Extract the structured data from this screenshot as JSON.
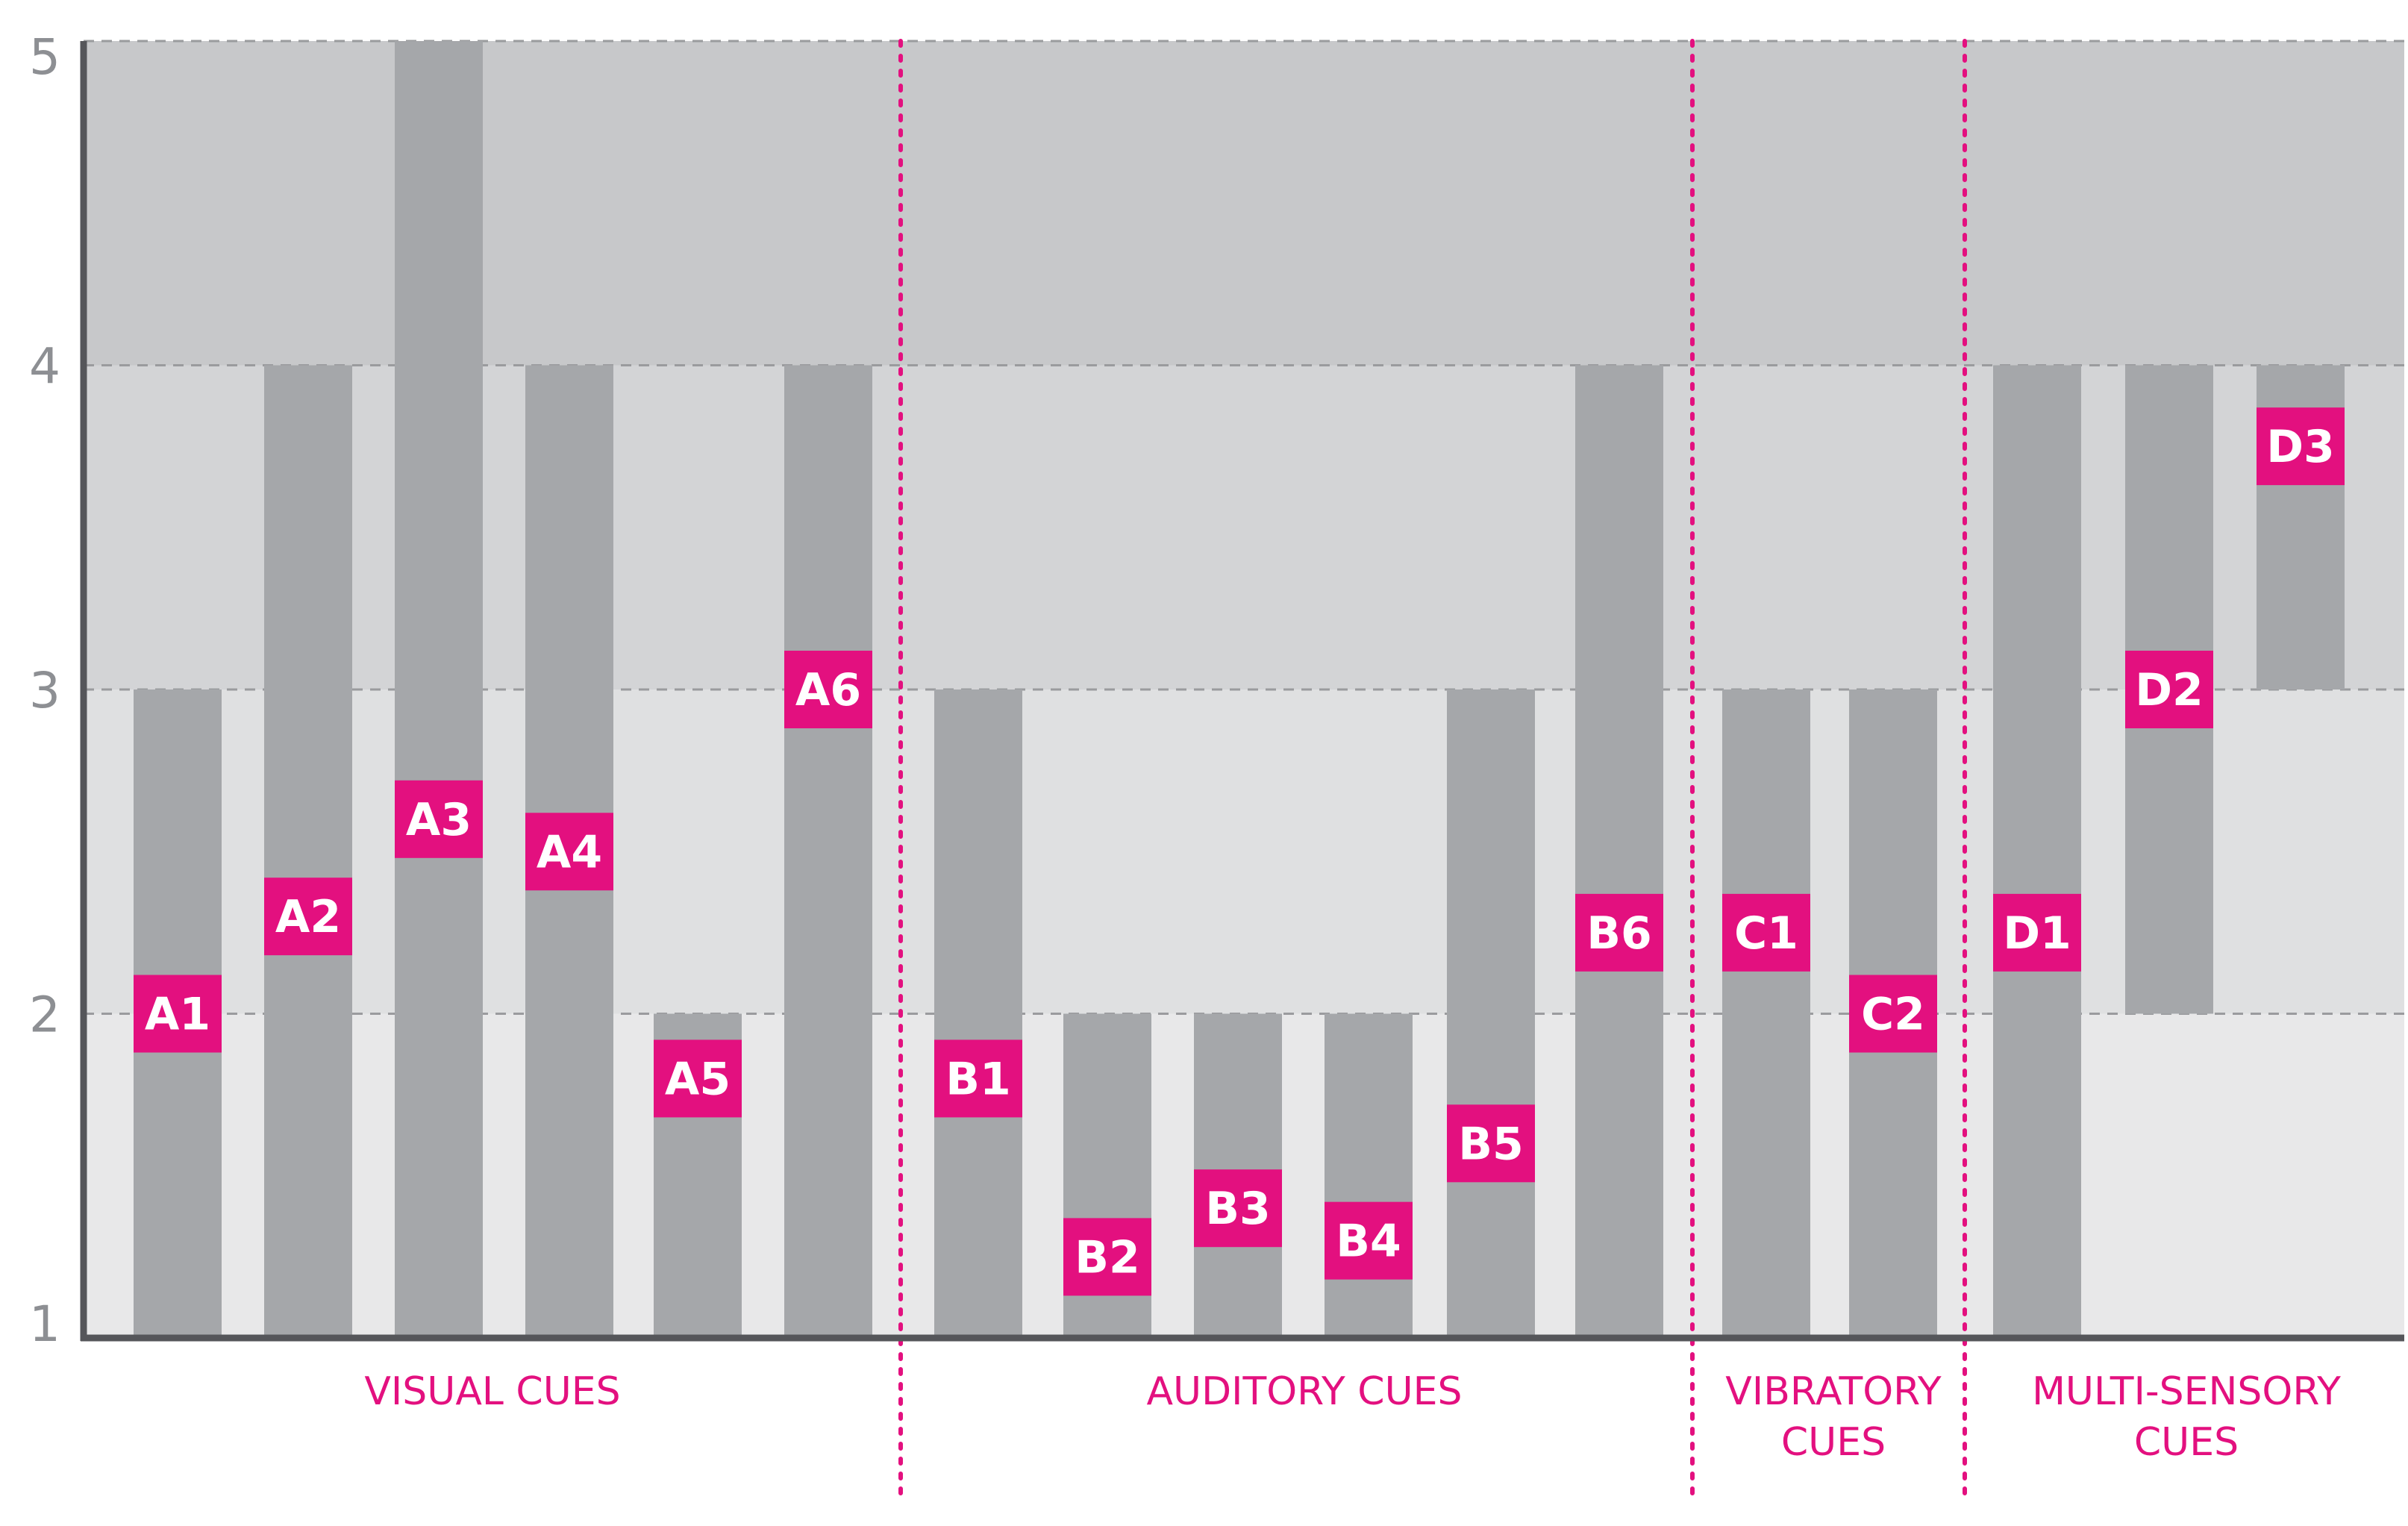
{
  "chart_data": {
    "type": "bar",
    "title": "",
    "xlabel": "",
    "ylabel": "",
    "ylim": [
      1,
      5
    ],
    "yticks": [
      "1",
      "2",
      "3",
      "4",
      "5"
    ],
    "grid": true,
    "groups": [
      {
        "label_lines": [
          "VISUAL CUES"
        ],
        "items": [
          "A1",
          "A2",
          "A3",
          "A4",
          "A5",
          "A6"
        ]
      },
      {
        "label_lines": [
          "AUDITORY CUES"
        ],
        "items": [
          "B1",
          "B2",
          "B3",
          "B4",
          "B5",
          "B6"
        ]
      },
      {
        "label_lines": [
          "VIBRATORY",
          "CUES"
        ],
        "items": [
          "C1",
          "C2"
        ]
      },
      {
        "label_lines": [
          "MULTI-SENSORY",
          "CUES"
        ],
        "items": [
          "D1",
          "D2",
          "D3"
        ]
      }
    ],
    "series": [
      {
        "name": "A1",
        "min": 1,
        "max": 3,
        "mean": 2.0
      },
      {
        "name": "A2",
        "min": 1,
        "max": 4,
        "mean": 2.3
      },
      {
        "name": "A3",
        "min": 1,
        "max": 5,
        "mean": 2.6
      },
      {
        "name": "A4",
        "min": 1,
        "max": 4,
        "mean": 2.5
      },
      {
        "name": "A5",
        "min": 1,
        "max": 2,
        "mean": 1.8
      },
      {
        "name": "A6",
        "min": 1,
        "max": 4,
        "mean": 3.0
      },
      {
        "name": "B1",
        "min": 1,
        "max": 3,
        "mean": 1.8
      },
      {
        "name": "B2",
        "min": 1,
        "max": 2,
        "mean": 1.25
      },
      {
        "name": "B3",
        "min": 1,
        "max": 2,
        "mean": 1.4
      },
      {
        "name": "B4",
        "min": 1,
        "max": 2,
        "mean": 1.3
      },
      {
        "name": "B5",
        "min": 1,
        "max": 3,
        "mean": 1.6
      },
      {
        "name": "B6",
        "min": 1,
        "max": 4,
        "mean": 2.25
      },
      {
        "name": "C1",
        "min": 1,
        "max": 3,
        "mean": 2.25
      },
      {
        "name": "C2",
        "min": 1,
        "max": 3,
        "mean": 2.0
      },
      {
        "name": "D1",
        "min": 1,
        "max": 4,
        "mean": 2.25
      },
      {
        "name": "D2",
        "min": 2,
        "max": 4,
        "mean": 3.0
      },
      {
        "name": "D3",
        "min": 3,
        "max": 4,
        "mean": 3.75
      }
    ]
  },
  "colors": {
    "band_1_2": "#e8e8e9",
    "band_2_3": "#dfe0e1",
    "band_3_4": "#d3d4d6",
    "band_4_5": "#c7c8ca",
    "bar": "#a5a7aa",
    "marker": "#e3107f",
    "axis": "#55565a",
    "grid": "#9a9b9e",
    "tick_text": "#8d8f93"
  }
}
